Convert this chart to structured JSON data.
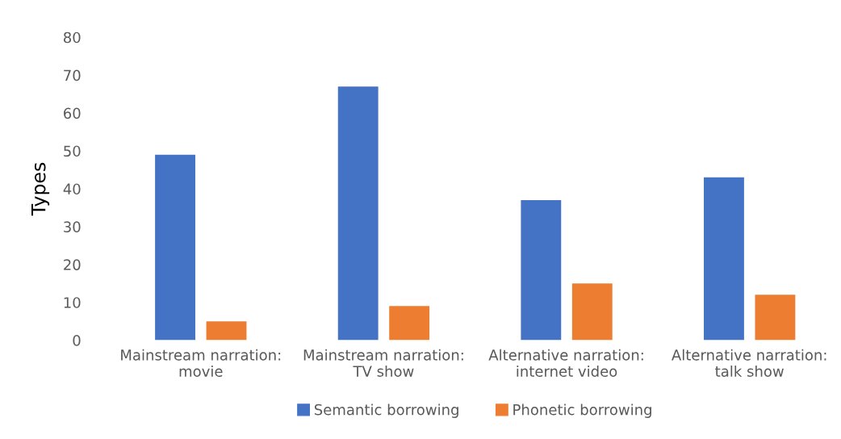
{
  "chart_data": {
    "type": "bar",
    "ylabel": "Types",
    "categories": [
      "Mainstream narration:\nmovie",
      "Mainstream narration:\nTV show",
      "Alternative narration:\ninternet video",
      "Alternative narration:\ntalk show"
    ],
    "series": [
      {
        "name": "Semantic borrowing",
        "color": "#4472c4",
        "values": [
          49,
          67,
          37,
          43
        ]
      },
      {
        "name": "Phonetic borrowing",
        "color": "#ed7d31",
        "values": [
          5,
          9,
          15,
          12
        ]
      }
    ],
    "ylim": [
      0,
      80
    ],
    "yticks": [
      0,
      10,
      20,
      30,
      40,
      50,
      60,
      70,
      80
    ],
    "grid": false,
    "legend": "bottom"
  }
}
